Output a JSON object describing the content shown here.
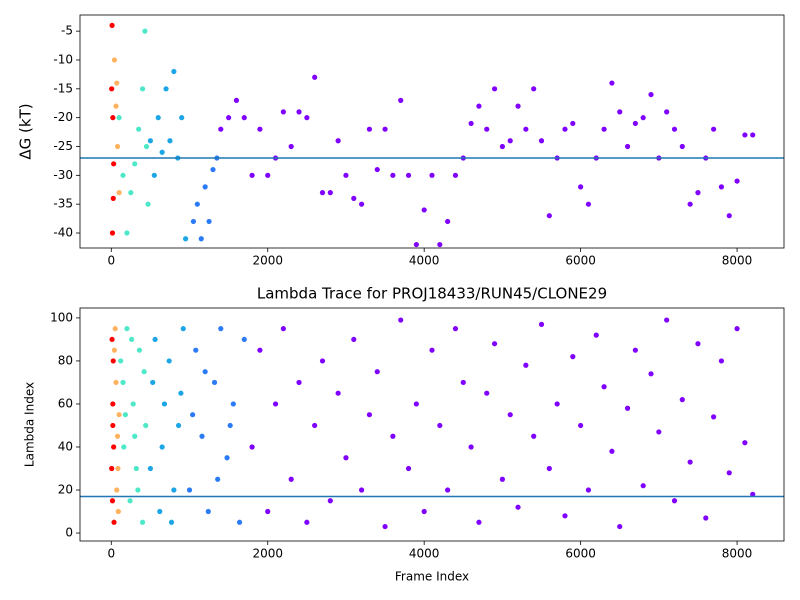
{
  "chart_data": [
    {
      "type": "scatter",
      "ylabel": "ΔG (kT)",
      "xlim": [
        -400,
        8600
      ],
      "ylim": [
        -42.6,
        -2.2
      ],
      "xticks": [
        0,
        2000,
        4000,
        6000,
        8000
      ],
      "yticks": [
        -40,
        -35,
        -30,
        -25,
        -20,
        -15,
        -10,
        -5
      ],
      "hline": -27,
      "hline_color": "#1f77b4",
      "series": [
        {
          "color": "#ff0000",
          "x": [
            10,
            20,
            30,
            15,
            25,
            5
          ],
          "values": [
            -4,
            -20,
            -28,
            -40,
            -34,
            -15
          ]
        },
        {
          "color": "#ffb360",
          "x": [
            40,
            60,
            80,
            100,
            70
          ],
          "values": [
            -10,
            -18,
            -25,
            -33,
            -14
          ]
        },
        {
          "color": "#4de8c8",
          "x": [
            100,
            150,
            200,
            250,
            300,
            350,
            400,
            430,
            450,
            470
          ],
          "values": [
            -20,
            -30,
            -40,
            -33,
            -28,
            -22,
            -15,
            -5,
            -25,
            -35
          ]
        },
        {
          "color": "#1ca6e6",
          "x": [
            500,
            550,
            600,
            650,
            700,
            750,
            800,
            850,
            900,
            950
          ],
          "values": [
            -24,
            -30,
            -20,
            -26,
            -15,
            -24,
            -12,
            -27,
            -20,
            -41
          ]
        },
        {
          "color": "#2c7bf6",
          "x": [
            1050,
            1100,
            1150,
            1200,
            1250,
            1300,
            1350
          ],
          "values": [
            -38,
            -35,
            -41,
            -32,
            -38,
            -29,
            -27
          ]
        },
        {
          "color": "#8000ff",
          "x": [
            1400,
            1500,
            1600,
            1700,
            1800,
            1900,
            2000,
            2100,
            2200,
            2300,
            2400,
            2500,
            2600,
            2700,
            2800,
            2900,
            3000,
            3100,
            3200,
            3300,
            3400,
            3500,
            3600,
            3700,
            3800,
            3900,
            4000,
            4100,
            4200,
            4300,
            4400,
            4500,
            4600,
            4700,
            4800,
            4900,
            5000,
            5100,
            5200,
            5300,
            5400,
            5500,
            5600,
            5700,
            5800,
            5900,
            6000,
            6100,
            6200,
            6300,
            6400,
            6500,
            6600,
            6700,
            6800,
            6900,
            7000,
            7100,
            7200,
            7300,
            7400,
            7500,
            7600,
            7700,
            7800,
            7900,
            8000,
            8100,
            8200
          ],
          "values": [
            -22,
            -20,
            -17,
            -20,
            -30,
            -22,
            -30,
            -27,
            -19,
            -25,
            -19,
            -20,
            -13,
            -33,
            -33,
            -24,
            -30,
            -34,
            -35,
            -22,
            -29,
            -22,
            -30,
            -17,
            -30,
            -42,
            -36,
            -30,
            -42,
            -38,
            -30,
            -27,
            -21,
            -18,
            -22,
            -15,
            -25,
            -24,
            -18,
            -22,
            -15,
            -24,
            -37,
            -27,
            -22,
            -21,
            -32,
            -35,
            -27,
            -22,
            -14,
            -19,
            -25,
            -21,
            -20,
            -16,
            -27,
            -19,
            -22,
            -25,
            -35,
            -33,
            -27,
            -22,
            -32,
            -37,
            -31,
            -23,
            -23
          ]
        }
      ]
    },
    {
      "type": "scatter",
      "title": "Lambda Trace for PROJ18433/RUN45/CLONE29",
      "xlabel": "Frame Index",
      "ylabel": "Lambda Index",
      "xlim": [
        -400,
        8600
      ],
      "ylim": [
        -3.7,
        104.6
      ],
      "xticks": [
        0,
        2000,
        4000,
        6000,
        8000
      ],
      "yticks": [
        0,
        20,
        40,
        60,
        80,
        100
      ],
      "hline": 17,
      "hline_color": "#1f77b4",
      "series": [
        {
          "color": "#ff0000",
          "x": [
            10,
            20,
            30,
            15,
            25,
            5,
            35,
            20
          ],
          "values": [
            90,
            60,
            40,
            15,
            80,
            30,
            5,
            50
          ]
        },
        {
          "color": "#ffb360",
          "x": [
            50,
            60,
            80,
            70,
            90,
            100,
            40,
            85
          ],
          "values": [
            95,
            70,
            45,
            20,
            10,
            55,
            85,
            30
          ]
        },
        {
          "color": "#4de8c8",
          "x": [
            120,
            160,
            200,
            240,
            280,
            320,
            360,
            400,
            440,
            150,
            260,
            340,
            420,
            180,
            300
          ],
          "values": [
            80,
            40,
            95,
            15,
            60,
            30,
            85,
            5,
            50,
            70,
            90,
            20,
            75,
            55,
            45
          ]
        },
        {
          "color": "#1ca6e6",
          "x": [
            500,
            560,
            620,
            680,
            740,
            800,
            860,
            920,
            530,
            650,
            770,
            890
          ],
          "values": [
            30,
            90,
            10,
            60,
            80,
            20,
            50,
            95,
            70,
            40,
            5,
            65
          ]
        },
        {
          "color": "#2c7bf6",
          "x": [
            1000,
            1080,
            1160,
            1240,
            1320,
            1400,
            1480,
            1560,
            1640,
            1700,
            1040,
            1200,
            1360,
            1520
          ],
          "values": [
            20,
            85,
            45,
            10,
            70,
            95,
            35,
            60,
            5,
            90,
            55,
            75,
            25,
            50
          ]
        },
        {
          "color": "#8000ff",
          "x": [
            1800,
            1900,
            2000,
            2100,
            2200,
            2300,
            2400,
            2500,
            2600,
            2700,
            2800,
            2900,
            3000,
            3100,
            3200,
            3300,
            3400,
            3500,
            3600,
            3700,
            3800,
            3900,
            4000,
            4100,
            4200,
            4300,
            4400,
            4500,
            4600,
            4700,
            4800,
            4900,
            5000,
            5100,
            5200,
            5300,
            5400,
            5500,
            5600,
            5700,
            5800,
            5900,
            6000,
            6100,
            6200,
            6300,
            6400,
            6500,
            6600,
            6700,
            6800,
            6900,
            7000,
            7100,
            7200,
            7300,
            7400,
            7500,
            7600,
            7700,
            7800,
            7900,
            8000,
            8100,
            8200
          ],
          "values": [
            40,
            85,
            10,
            60,
            95,
            25,
            70,
            5,
            50,
            80,
            15,
            65,
            35,
            90,
            20,
            55,
            75,
            3,
            45,
            99,
            30,
            60,
            10,
            85,
            50,
            20,
            95,
            70,
            40,
            5,
            65,
            88,
            25,
            55,
            12,
            78,
            45,
            97,
            30,
            60,
            8,
            82,
            50,
            20,
            92,
            68,
            38,
            3,
            58,
            85,
            22,
            74,
            47,
            99,
            15,
            62,
            33,
            88,
            7,
            54,
            80,
            28,
            95,
            42,
            18
          ]
        }
      ]
    }
  ]
}
